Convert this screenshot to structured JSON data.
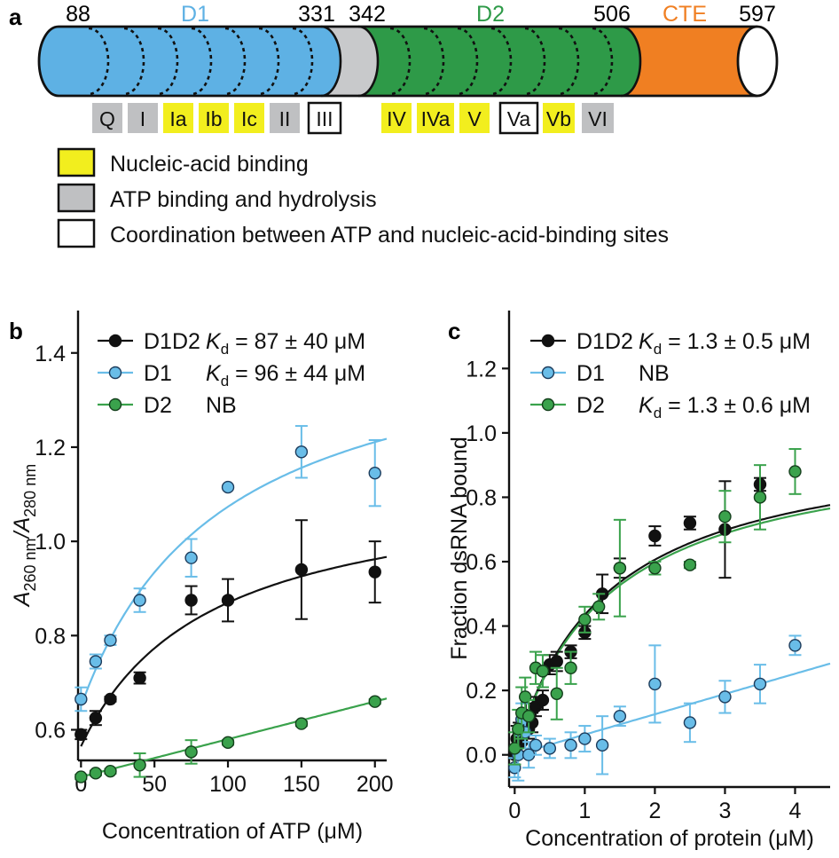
{
  "panel_a": {
    "label": "a",
    "domains": [
      {
        "name": "D1",
        "color": "#5eb1e4",
        "text_color": "#5eb1e4"
      },
      {
        "name": "D2",
        "color": "#2e9a48",
        "text_color": "#2e9a48"
      },
      {
        "name": "CTE",
        "color": "#f07f22",
        "text_color": "#f07f22"
      }
    ],
    "positions": [
      "88",
      "331",
      "342",
      "506",
      "597"
    ],
    "motifs": [
      {
        "label": "Q",
        "kind": "atp"
      },
      {
        "label": "I",
        "kind": "atp"
      },
      {
        "label": "Ia",
        "kind": "nucleic"
      },
      {
        "label": "Ib",
        "kind": "nucleic"
      },
      {
        "label": "Ic",
        "kind": "nucleic"
      },
      {
        "label": "II",
        "kind": "atp"
      },
      {
        "label": "III",
        "kind": "coord"
      },
      {
        "label": "IV",
        "kind": "nucleic"
      },
      {
        "label": "IVa",
        "kind": "nucleic"
      },
      {
        "label": "V",
        "kind": "nucleic"
      },
      {
        "label": "Va",
        "kind": "coord"
      },
      {
        "label": "Vb",
        "kind": "nucleic"
      },
      {
        "label": "VI",
        "kind": "atp"
      }
    ],
    "legend": [
      {
        "kind": "nucleic",
        "text": "Nucleic-acid binding"
      },
      {
        "kind": "atp",
        "text": "ATP binding and hydrolysis"
      },
      {
        "kind": "coord",
        "text": "Coordination between ATP and nucleic-acid-binding sites"
      }
    ],
    "colors": {
      "nucleic": "#f2ee1e",
      "atp": "#bfc0c2",
      "coord": "#ffffff",
      "linker": "#c8c9cb"
    }
  },
  "chart_data": [
    {
      "panel": "b",
      "type": "scatter",
      "ylabel_main": "A",
      "ylabel_sub1": "260 nm",
      "ylabel_div": "/A",
      "ylabel_sub2": "280 nm",
      "xlabel": "Concentration of ATP (μM)",
      "xlim": [
        -2,
        208
      ],
      "ylim": [
        0.535,
        1.49
      ],
      "xticks": [
        0,
        50,
        100,
        150,
        200
      ],
      "xtick_labels": [
        "0",
        "50",
        "100",
        "150",
        "200"
      ],
      "yticks": [
        0.6,
        0.8,
        1.0,
        1.2,
        1.4
      ],
      "ytick_labels": [
        "0.6",
        "0.8",
        "1.0",
        "1.2",
        "1.4"
      ],
      "grid": false,
      "legend_position": "top-left",
      "series": [
        {
          "name": "D1D2",
          "kd_text": "= 87 ± 40 μM",
          "color": "#111111",
          "marker_edge": "#111111",
          "x": [
            0,
            10,
            20,
            40,
            75,
            100,
            150,
            200
          ],
          "y": [
            0.59,
            0.625,
            0.665,
            0.71,
            0.875,
            0.875,
            0.94,
            0.935
          ],
          "err": [
            0.01,
            0.015,
            0.005,
            0.012,
            0.03,
            0.045,
            0.105,
            0.065
          ],
          "fit": {
            "y0": 0.565,
            "amp": 0.57,
            "kd": 87
          }
        },
        {
          "name": "D1",
          "kd_text": "= 96 ± 44 μM",
          "color": "#69bde8",
          "marker_edge": "#1d3c5c",
          "x": [
            0,
            10,
            20,
            40,
            75,
            100,
            150,
            200
          ],
          "y": [
            0.665,
            0.745,
            0.79,
            0.875,
            0.965,
            1.115,
            1.19,
            1.145
          ],
          "err": [
            0.025,
            0.015,
            0.01,
            0.025,
            0.04,
            0.0,
            0.055,
            0.07
          ],
          "fit": {
            "y0": 0.65,
            "amp": 0.83,
            "kd": 96
          }
        },
        {
          "name": "D2",
          "kd_text": "NB",
          "color": "#3aa24c",
          "marker_edge": "#143f1c",
          "x": [
            0,
            10,
            20,
            40,
            75,
            100,
            150,
            200
          ],
          "y": [
            0.5,
            0.508,
            0.512,
            0.525,
            0.553,
            0.573,
            0.613,
            0.66
          ],
          "err": [
            0.005,
            0.005,
            0.005,
            0.025,
            0.025,
            0.005,
            0.005,
            0.005
          ],
          "fit": {
            "linear": true,
            "y0": 0.5,
            "slope": 0.0008
          }
        }
      ]
    },
    {
      "panel": "c",
      "type": "scatter",
      "ylabel": "Fraction dsRNA bound",
      "xlabel": "Concentration of protein (μM)",
      "xlim": [
        -0.08,
        4.5
      ],
      "ylim": [
        -0.1,
        1.38
      ],
      "xticks": [
        0,
        1,
        2,
        3,
        4
      ],
      "xtick_labels": [
        "0",
        "1",
        "2",
        "3",
        "4"
      ],
      "yticks": [
        0.0,
        0.2,
        0.4,
        0.6,
        0.8,
        1.0,
        1.2
      ],
      "ytick_labels": [
        "0.0",
        "0.2",
        "0.4",
        "0.6",
        "0.8",
        "1.0",
        "1.2"
      ],
      "grid": false,
      "legend_position": "top-left",
      "series": [
        {
          "name": "D1D2",
          "kd_text": "= 1.3 ± 0.5 μM",
          "color": "#111111",
          "marker_edge": "#111111",
          "x": [
            0.0,
            0.03,
            0.06,
            0.1,
            0.13,
            0.16,
            0.2,
            0.25,
            0.3,
            0.4,
            0.5,
            0.6,
            0.8,
            1.0,
            1.25,
            1.5,
            2.0,
            2.5,
            3.0,
            3.5
          ],
          "y": [
            0.0,
            0.05,
            0.07,
            0.04,
            0.1,
            0.12,
            0.08,
            0.1,
            0.15,
            0.17,
            0.28,
            0.29,
            0.32,
            0.38,
            0.5,
            0.58,
            0.68,
            0.72,
            0.7,
            0.84
          ],
          "err": [
            0.03,
            0.04,
            0.03,
            0.03,
            0.04,
            0.04,
            0.03,
            0.03,
            0.03,
            0.03,
            0.03,
            0.03,
            0.02,
            0.02,
            0.06,
            0.03,
            0.03,
            0.02,
            0.15,
            0.02
          ],
          "fit": {
            "amp": 1.0,
            "kd": 1.3
          }
        },
        {
          "name": "D1",
          "kd_text": "NB",
          "color": "#69bde8",
          "marker_edge": "#1d3c5c",
          "x": [
            0.0,
            0.05,
            0.1,
            0.15,
            0.2,
            0.3,
            0.5,
            0.8,
            1.0,
            1.25,
            1.5,
            2.0,
            2.5,
            3.0,
            3.5,
            4.0
          ],
          "y": [
            -0.04,
            0.0,
            0.11,
            0.07,
            0.0,
            0.03,
            0.02,
            0.03,
            0.05,
            0.03,
            0.12,
            0.22,
            0.1,
            0.18,
            0.22,
            0.34
          ],
          "err": [
            0.03,
            0.08,
            0.05,
            0.05,
            0.04,
            0.03,
            0.03,
            0.04,
            0.04,
            0.09,
            0.03,
            0.12,
            0.06,
            0.05,
            0.06,
            0.03
          ],
          "fit": {
            "linear": true,
            "y0": 0.0,
            "slope": 0.063
          }
        },
        {
          "name": "D2",
          "kd_text": "= 1.3 ± 0.6 μM",
          "color": "#3aa24c",
          "marker_edge": "#143f1c",
          "x": [
            0.0,
            0.05,
            0.1,
            0.15,
            0.2,
            0.3,
            0.4,
            0.6,
            0.8,
            1.0,
            1.2,
            1.5,
            2.0,
            2.5,
            3.0,
            3.5,
            4.0
          ],
          "y": [
            0.02,
            0.08,
            0.13,
            0.18,
            0.12,
            0.27,
            0.26,
            0.19,
            0.27,
            0.42,
            0.46,
            0.58,
            0.58,
            0.59,
            0.74,
            0.8,
            0.88
          ],
          "err": [
            0.05,
            0.06,
            0.08,
            0.06,
            0.05,
            0.05,
            0.05,
            0.08,
            0.05,
            0.04,
            0.04,
            0.15,
            0.02,
            0.01,
            0.08,
            0.1,
            0.07
          ],
          "fit": {
            "amp": 0.99,
            "kd": 1.32
          }
        }
      ]
    }
  ]
}
